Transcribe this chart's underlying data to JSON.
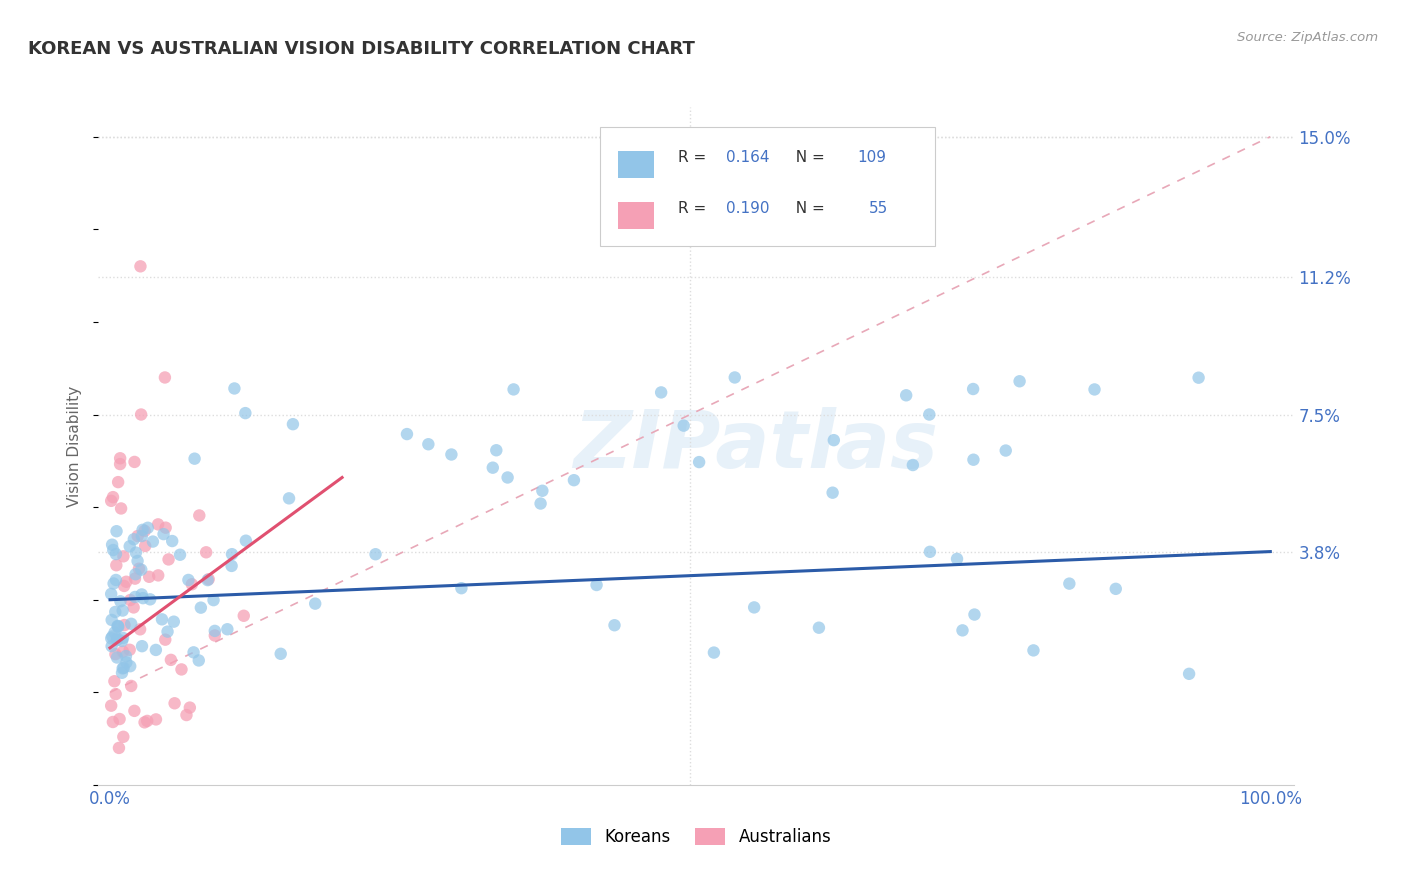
{
  "title": "KOREAN VS AUSTRALIAN VISION DISABILITY CORRELATION CHART",
  "source": "Source: ZipAtlas.com",
  "ylabel": "Vision Disability",
  "korean_color": "#92C5E8",
  "australian_color": "#F5A0B5",
  "korean_trend_color": "#2B5BA8",
  "australian_trend_color": "#E05070",
  "diag_color": "#D0D0D0",
  "grid_color": "#DDDDDD",
  "korean_R": "0.164",
  "korean_N": "109",
  "australian_R": "0.190",
  "australian_N": "55",
  "legend_label_korean": "Koreans",
  "legend_label_australian": "Australians",
  "x_tick_labels": [
    "0.0%",
    "",
    "",
    "",
    "100.0%"
  ],
  "y_tick_labels_right": [
    "15.0%",
    "11.2%",
    "7.5%",
    "3.8%"
  ],
  "y_tick_values_right": [
    0.15,
    0.112,
    0.075,
    0.038
  ],
  "watermark": "ZIPatlas"
}
